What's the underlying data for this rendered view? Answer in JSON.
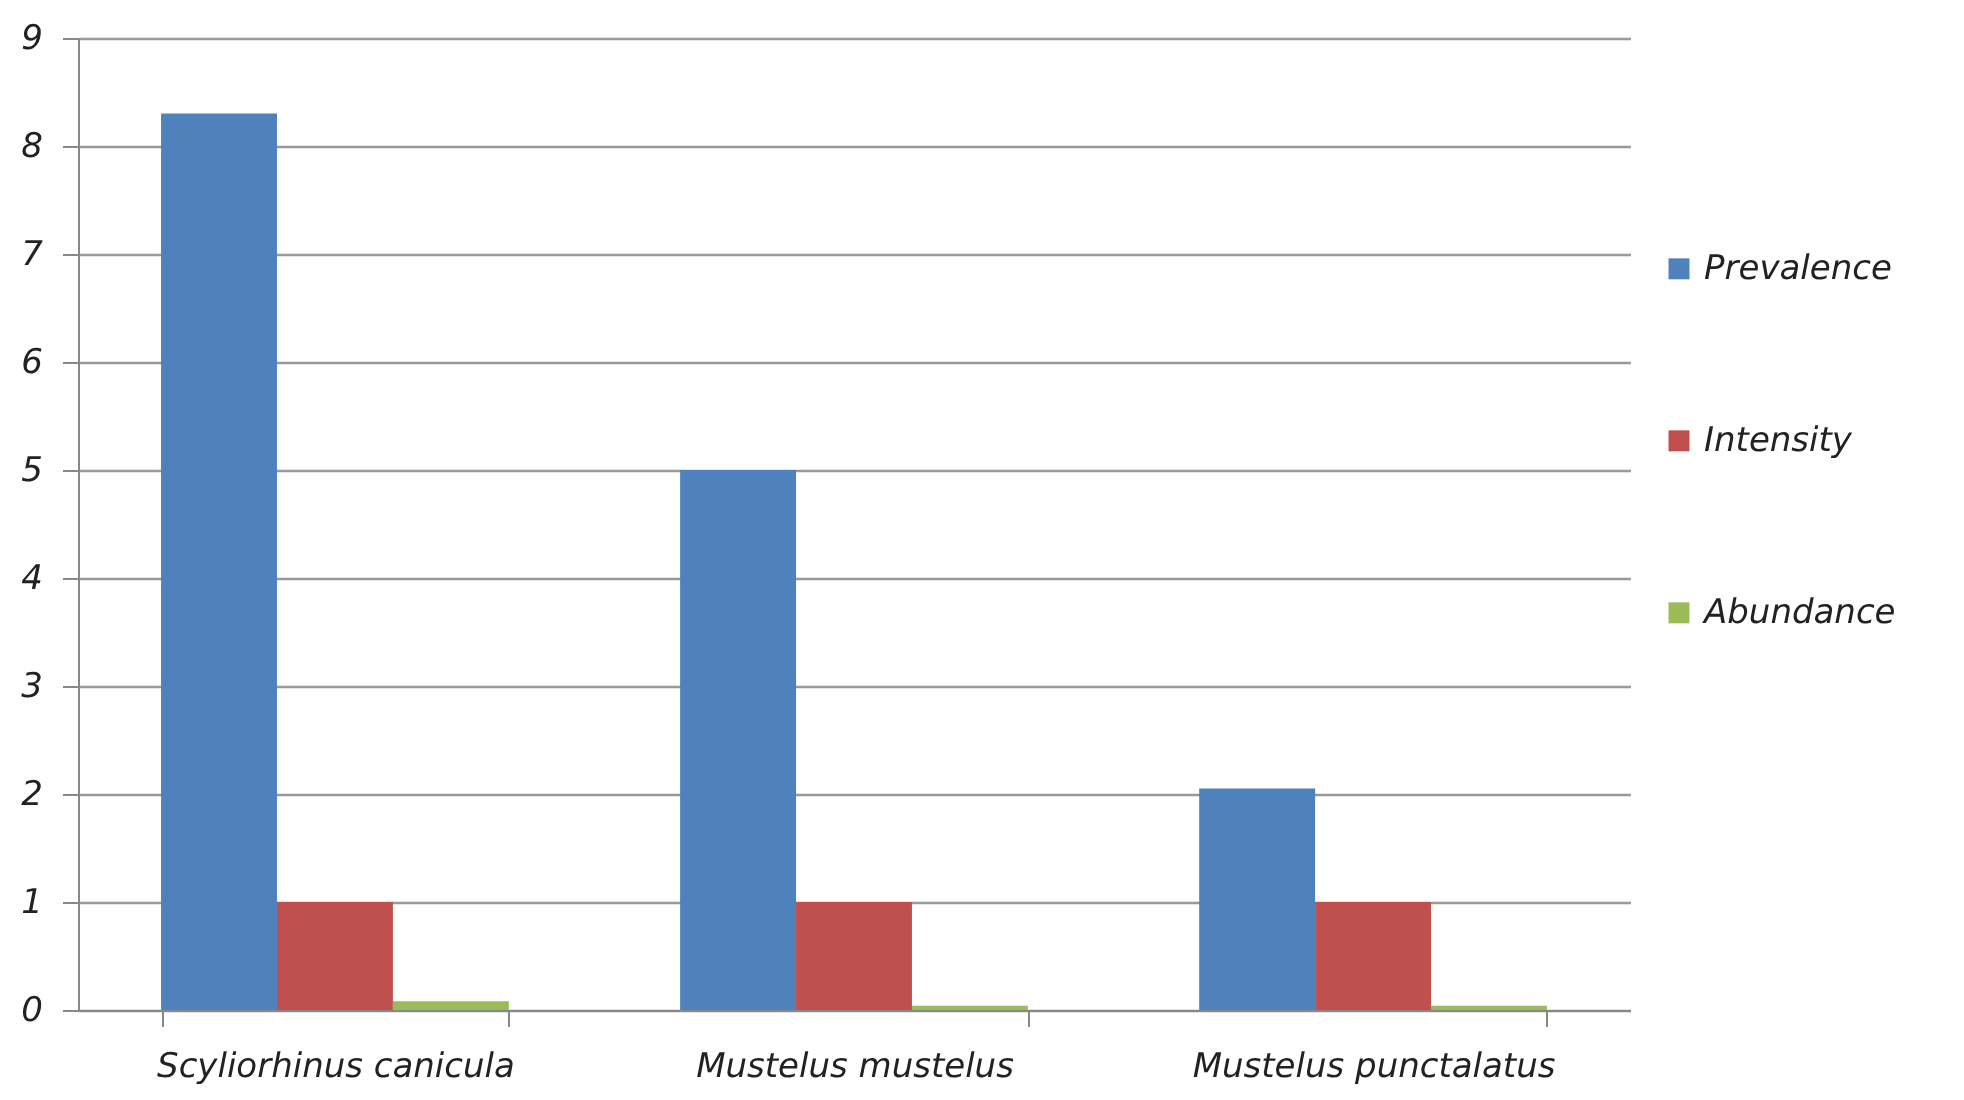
{
  "chart_data": {
    "type": "bar",
    "categories": [
      "Scyliorhinus canicula",
      "Mustelus mustelus",
      "Mustelus punctalatus"
    ],
    "series": [
      {
        "name": "Prevalence",
        "color": "#4f81bd",
        "values": [
          8.3,
          5.0,
          2.05
        ]
      },
      {
        "name": "Intensity",
        "color": "#c0504d",
        "values": [
          1,
          1,
          1
        ]
      },
      {
        "name": "Abundance",
        "color": "#9bbb59",
        "values": [
          0.08,
          0.04,
          0.04
        ]
      }
    ],
    "ylim": [
      0,
      9
    ],
    "yticks": [
      0,
      1,
      2,
      3,
      4,
      5,
      6,
      7,
      8,
      9
    ],
    "grid": "y",
    "legend": "right"
  }
}
